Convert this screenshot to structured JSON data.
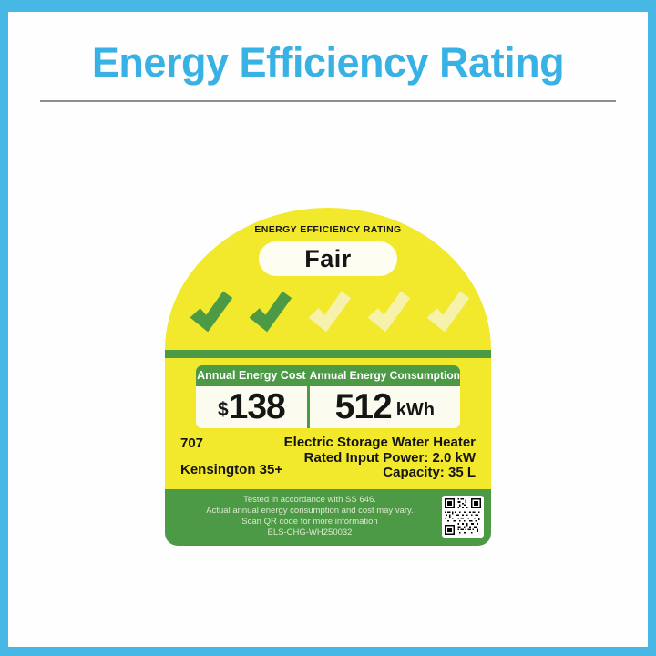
{
  "page": {
    "title": "Energy Efficiency Rating"
  },
  "label": {
    "heading": "ENERGY EFFICIENCY RATING",
    "rating": "Fair",
    "ticks_total": 5,
    "ticks_filled": 2,
    "cost": {
      "header": "Annual Energy Cost",
      "currency": "$",
      "value": "138"
    },
    "consumption": {
      "header": "Annual Energy Consumption",
      "value": "512",
      "unit": "kWh"
    },
    "product": {
      "brand": "707",
      "model": "Kensington 35+",
      "type": "Electric Storage Water Heater",
      "rated_input_power": "Rated Input Power: 2.0 kW",
      "capacity": "Capacity: 35 L"
    },
    "footer": {
      "line1": "Tested in accordance with SS 646.",
      "line2": "Actual annual energy consumption and cost may vary.",
      "line3": "Scan QR code for more information",
      "code": "ELS-CHG-WH250032"
    },
    "colors": {
      "blue_title": "#38B2E4",
      "blue_border": "#47B7E5",
      "yellow": "#F2E92C",
      "green": "#4D9A46",
      "pale_check": "#F6F2AC",
      "value_background": "#FBFBEF",
      "footer_text": "#DAE9CC"
    }
  }
}
